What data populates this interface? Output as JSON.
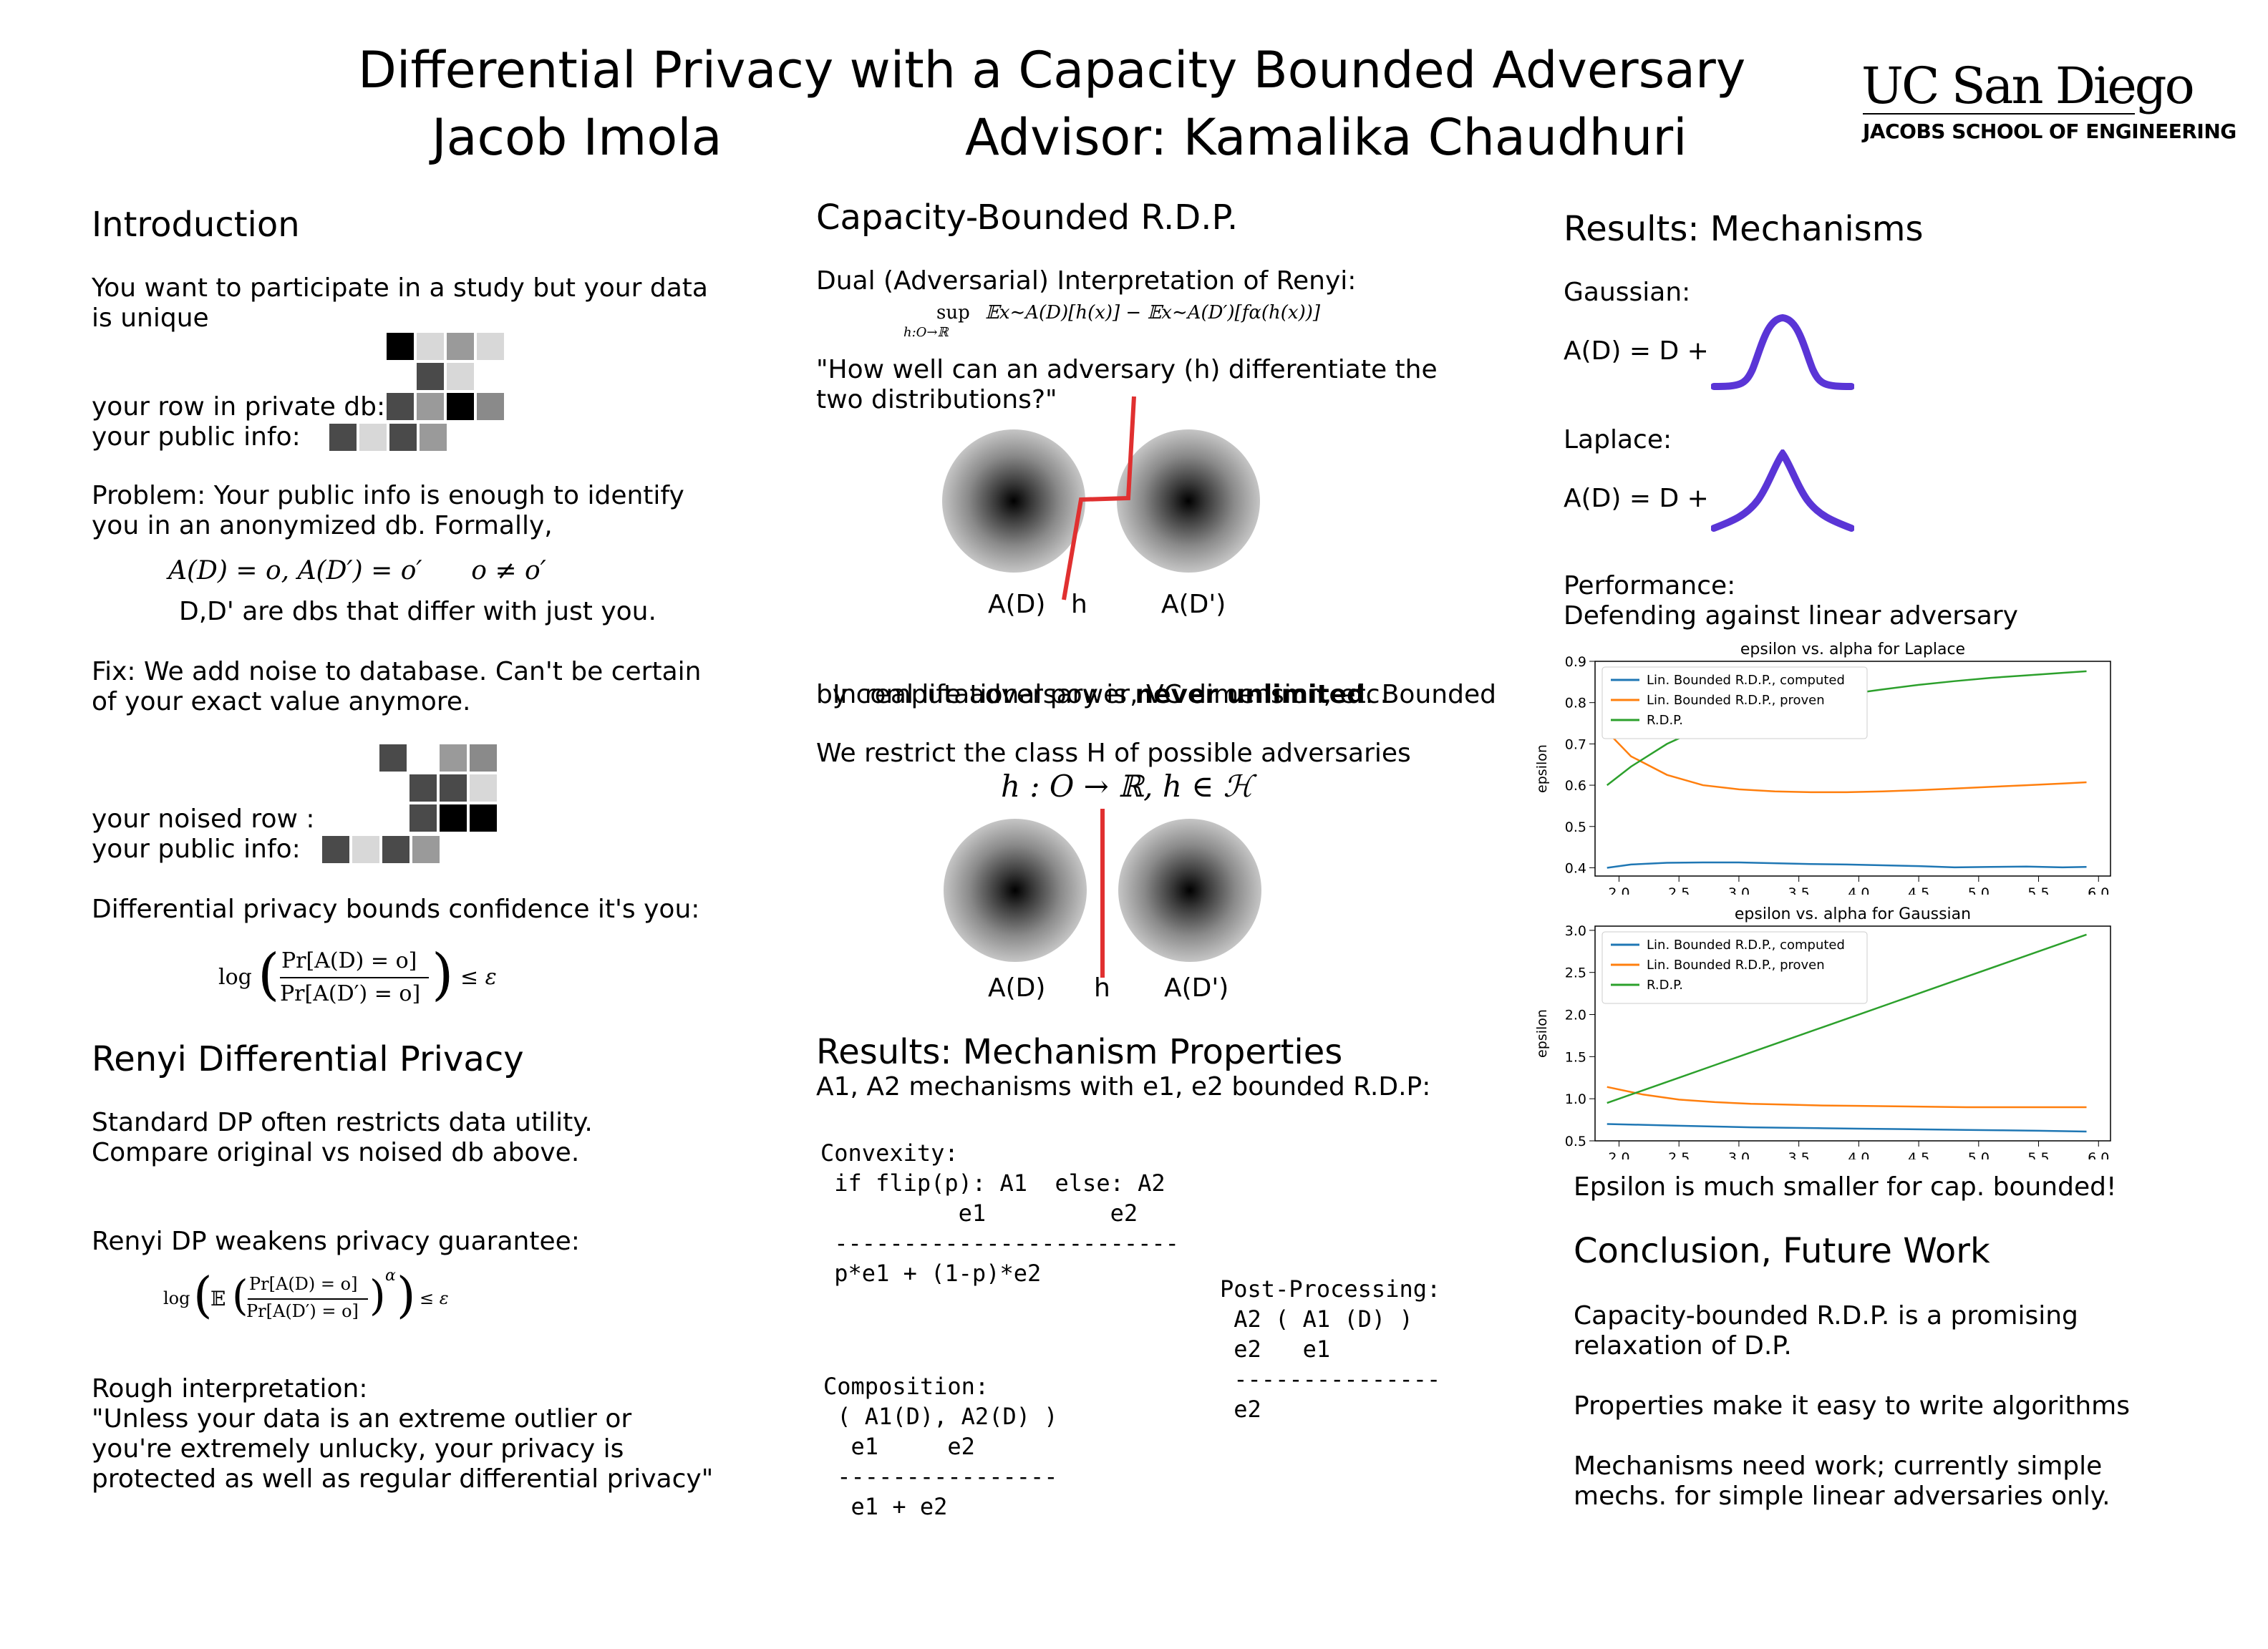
{
  "header": {
    "title": "Differential Privacy with a Capacity Bounded Adversary",
    "author": "Jacob Imola",
    "advisor": "Advisor: Kamalika Chaudhuri",
    "logo_line1": "UC San Diego",
    "logo_line2": "JACOBS SCHOOL OF ENGINEERING"
  },
  "col1": {
    "intro_heading": "Introduction",
    "intro_text": "You want to participate in a study but your data\nis unique",
    "row_label": "your row in private db:",
    "public_label": "your public info:",
    "problem_text": "Problem: Your public info is enough to identify\nyou in an anonymized db. Formally,",
    "problem_math": "A(D) = o, A(D′) = o′      o ≠ o′",
    "problem_note": "D,D' are dbs that differ with just you.",
    "fix_text": "Fix: We add noise to database. Can't be certain\nof your exact value anymore.",
    "noised_label": "your noised row :",
    "public_label2": "your public info:",
    "dp_text": "Differential privacy bounds confidence it's you:",
    "dp_math_log": "log",
    "dp_math_num": "Pr[A(D) = o]",
    "dp_math_den": "Pr[A(D′) = o]",
    "dp_math_rhs": "≤ ε",
    "renyi_heading": "Renyi Differential Privacy",
    "renyi_text1": "Standard DP often restricts data utility.\nCompare original vs noised db above.",
    "renyi_text2": "Renyi DP weakens privacy guarantee:",
    "renyi_math_log": "log",
    "renyi_math_e": "𝔼",
    "renyi_math_num": "Pr[A(D) = o]",
    "renyi_math_den": "Pr[A(D′) = o]",
    "renyi_math_alpha": "α",
    "renyi_math_rhs": "≤ ε",
    "rough_text": "Rough interpretation:\n\"Unless your data is an extreme outlier or\nyou're extremely unlucky, your privacy is\nprotected as well as regular differential privacy\""
  },
  "col2": {
    "heading": "Capacity-Bounded R.D.P.",
    "dual_text": "Dual (Adversarial) Interpretation of Renyi:",
    "dual_math_sup": "sup",
    "dual_math_sub": "h:O→ℝ",
    "dual_math_body": "𝔼x∼A(D)[h(x)] − 𝔼x∼A(D′)[fα(h(x))]",
    "quote": "\"How well can an adversary (h) differentiate the\ntwo distributions?\"",
    "fig1_ad": "A(D)",
    "fig1_h": "h",
    "fig1_adp": "A(D')",
    "reallife_pre": "In real life adversary is ",
    "reallife_bold": "never unlimited",
    "reallife_post": ". Bounded",
    "reallife_line2": "by computational power, VC dimension, etc.",
    "restrict_text": "We restrict the class H of possible adversaries",
    "restrict_math": "h : O → ℝ, h ∈ ℋ",
    "fig2_ad": "A(D)",
    "fig2_h": "h",
    "fig2_adp": "A(D')",
    "props_heading": "Results: Mechanism Properties",
    "props_sub": "A1, A2 mechanisms with e1, e2 bounded R.D.P:",
    "convexity": "Convexity:\n if flip(p): A1  else: A2\n          e1         e2\n -------------------------\n p*e1 + (1-p)*e2",
    "composition": "Composition:\n ( A1(D), A2(D) )\n  e1     e2\n ----------------\n  e1 + e2",
    "postprocessing": "Post-Processing:\n A2 ( A1 (D) )\n e2   e1\n ---------------\n e2"
  },
  "col3": {
    "heading": "Results: Mechanisms",
    "gaussian_label": "Gaussian:",
    "gaussian_eq": "A(D) = D +",
    "laplace_label": "Laplace:",
    "laplace_eq": "A(D) = D +",
    "perf_text": "Performance:\nDefending against linear adversary",
    "epsilon_note": "Epsilon is much smaller for cap. bounded!",
    "conclusion_heading": "Conclusion, Future Work",
    "conclusion_text": "Capacity-bounded R.D.P. is a promising\nrelaxation of D.P.\n\nProperties make it easy to write algorithms\n\nMechanisms need work; currently simple\nmechs. for simple linear adversaries only.",
    "curve_color": "#5a35d6"
  },
  "chart_data": [
    {
      "type": "line",
      "title": "epsilon vs. alpha for Laplace",
      "xlabel": "",
      "ylabel": "epsilon",
      "xlim": [
        1.8,
        6.1
      ],
      "ylim": [
        0.38,
        0.9
      ],
      "xticks": [
        "2.0",
        "2.5",
        "3.0",
        "3.5",
        "4.0",
        "4.5",
        "5.0",
        "5.5",
        "6.0"
      ],
      "yticks": [
        "0.4",
        "0.5",
        "0.6",
        "0.7",
        "0.8",
        "0.9"
      ],
      "legend_position": "top-left",
      "x": [
        1.9,
        2.1,
        2.4,
        2.7,
        3.0,
        3.3,
        3.6,
        3.9,
        4.2,
        4.5,
        4.8,
        5.1,
        5.4,
        5.7,
        5.9
      ],
      "series": [
        {
          "name": "Lin. Bounded R.D.P., computed",
          "color": "#1f77b4",
          "values": [
            0.4,
            0.408,
            0.412,
            0.413,
            0.413,
            0.411,
            0.409,
            0.408,
            0.406,
            0.404,
            0.401,
            0.402,
            0.403,
            0.401,
            0.402
          ]
        },
        {
          "name": "Lin. Bounded R.D.P., proven",
          "color": "#ff7f0e",
          "values": [
            0.73,
            0.67,
            0.625,
            0.6,
            0.59,
            0.585,
            0.583,
            0.583,
            0.585,
            0.588,
            0.592,
            0.596,
            0.6,
            0.604,
            0.607
          ]
        },
        {
          "name": "R.D.P.",
          "color": "#2ca02c",
          "values": [
            0.6,
            0.645,
            0.7,
            0.74,
            0.77,
            0.79,
            0.805,
            0.82,
            0.832,
            0.843,
            0.852,
            0.86,
            0.866,
            0.872,
            0.876
          ]
        }
      ]
    },
    {
      "type": "line",
      "title": "epsilon vs. alpha for Gaussian",
      "xlabel": "",
      "ylabel": "epsilon",
      "xlim": [
        1.8,
        6.1
      ],
      "ylim": [
        0.5,
        3.05
      ],
      "xticks": [
        "2.0",
        "2.5",
        "3.0",
        "3.5",
        "4.0",
        "4.5",
        "5.0",
        "5.5",
        "6.0"
      ],
      "yticks": [
        "0.5",
        "1.0",
        "1.5",
        "2.0",
        "2.5",
        "3.0"
      ],
      "legend_position": "top-left",
      "x": [
        1.9,
        2.2,
        2.5,
        2.8,
        3.1,
        3.4,
        3.7,
        4.0,
        4.3,
        4.6,
        4.9,
        5.2,
        5.5,
        5.9
      ],
      "series": [
        {
          "name": "Lin. Bounded R.D.P., computed",
          "color": "#1f77b4",
          "values": [
            0.7,
            0.69,
            0.68,
            0.67,
            0.66,
            0.655,
            0.65,
            0.645,
            0.64,
            0.635,
            0.63,
            0.625,
            0.62,
            0.61
          ]
        },
        {
          "name": "Lin. Bounded R.D.P., proven",
          "color": "#ff7f0e",
          "values": [
            1.14,
            1.05,
            0.99,
            0.96,
            0.94,
            0.93,
            0.92,
            0.915,
            0.91,
            0.905,
            0.9,
            0.9,
            0.9,
            0.9
          ]
        },
        {
          "name": "R.D.P.",
          "color": "#2ca02c",
          "values": [
            0.95,
            1.1,
            1.25,
            1.4,
            1.55,
            1.7,
            1.85,
            2.0,
            2.15,
            2.3,
            2.45,
            2.6,
            2.75,
            2.95
          ]
        }
      ]
    }
  ]
}
